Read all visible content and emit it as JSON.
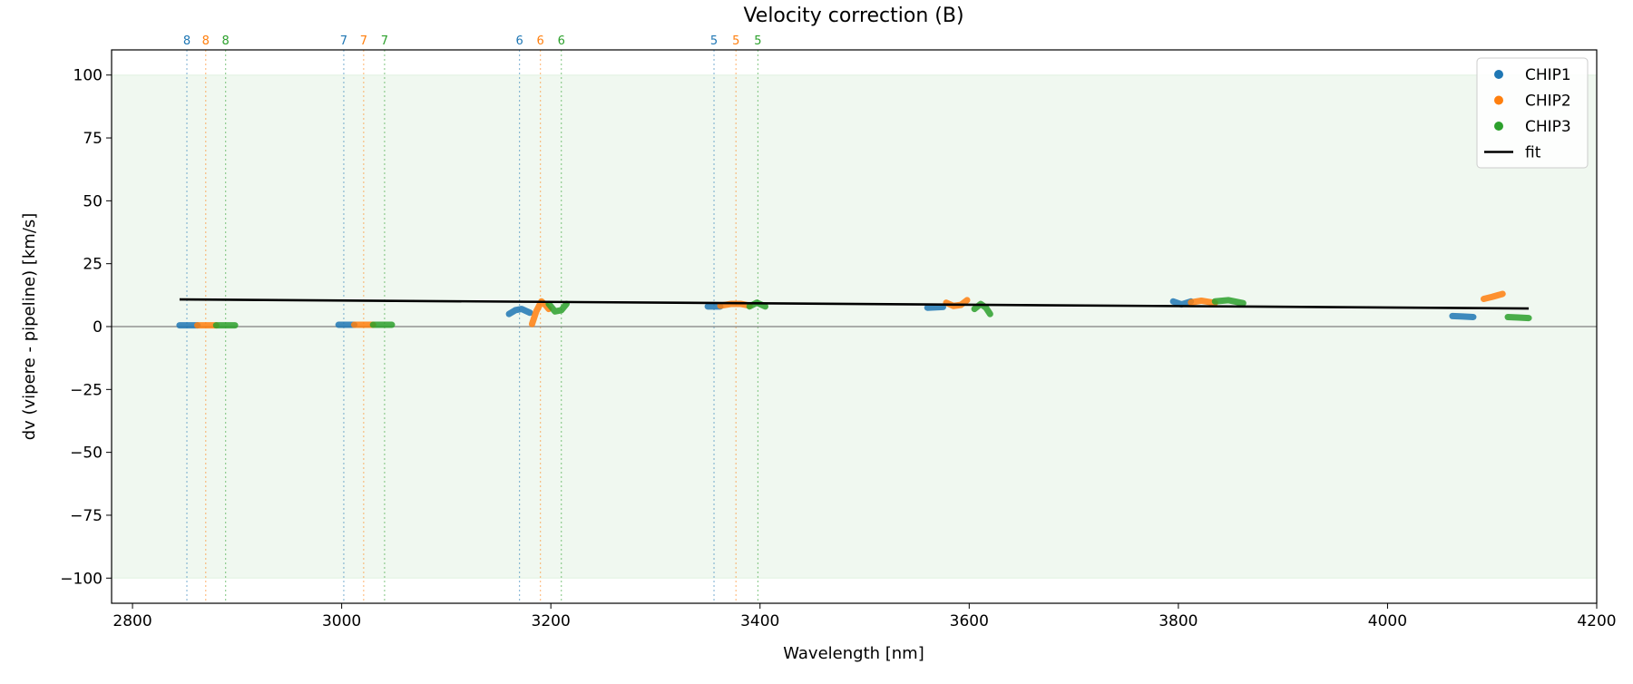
{
  "chart_data": {
    "type": "scatter",
    "title": "Velocity correction (B)",
    "xlabel": "Wavelength [nm]",
    "ylabel": "dv (vipere - pipeline) [km/s]",
    "xlim": [
      2780,
      4200
    ],
    "ylim": [
      -110,
      110
    ],
    "xticks": [
      2800,
      3000,
      3200,
      3400,
      3600,
      3800,
      4000,
      4200
    ],
    "yticks": [
      -100,
      -75,
      -50,
      -25,
      0,
      25,
      50,
      75,
      100
    ],
    "shaded_band": [
      -100,
      100
    ],
    "colors": {
      "CHIP1": "#1f77b4",
      "CHIP2": "#ff7f0e",
      "CHIP3": "#2ca02c",
      "fit": "#000000",
      "band": "#2ca02c"
    },
    "legend": {
      "placement": "top-right",
      "entries": [
        "CHIP1",
        "CHIP2",
        "CHIP3",
        "fit"
      ]
    },
    "order_markers": [
      {
        "order": "8",
        "chip": "CHIP1",
        "x": 2852
      },
      {
        "order": "8",
        "chip": "CHIP2",
        "x": 2870
      },
      {
        "order": "8",
        "chip": "CHIP3",
        "x": 2889
      },
      {
        "order": "7",
        "chip": "CHIP1",
        "x": 3002
      },
      {
        "order": "7",
        "chip": "CHIP2",
        "x": 3021
      },
      {
        "order": "7",
        "chip": "CHIP3",
        "x": 3041
      },
      {
        "order": "6",
        "chip": "CHIP1",
        "x": 3170
      },
      {
        "order": "6",
        "chip": "CHIP2",
        "x": 3190
      },
      {
        "order": "6",
        "chip": "CHIP3",
        "x": 3210
      },
      {
        "order": "5",
        "chip": "CHIP1",
        "x": 3356
      },
      {
        "order": "5",
        "chip": "CHIP2",
        "x": 3377
      },
      {
        "order": "5",
        "chip": "CHIP3",
        "x": 3398
      }
    ],
    "series": [
      {
        "name": "CHIP1",
        "segments": [
          [
            [
              2845,
              0.5
            ],
            [
              2862,
              0.5
            ]
          ],
          [
            [
              2997,
              0.7
            ],
            [
              3012,
              0.7
            ]
          ],
          [
            [
              3160,
              5
            ],
            [
              3166,
              6.5
            ],
            [
              3172,
              7
            ],
            [
              3180,
              5.5
            ]
          ],
          [
            [
              3350,
              8
            ],
            [
              3362,
              8
            ]
          ],
          [
            [
              3560,
              7.5
            ],
            [
              3575,
              7.8
            ]
          ],
          [
            [
              3795,
              10
            ],
            [
              3803,
              8.8
            ],
            [
              3812,
              10
            ]
          ],
          [
            [
              4062,
              4.2
            ],
            [
              4072,
              4
            ],
            [
              4082,
              3.8
            ]
          ]
        ]
      },
      {
        "name": "CHIP2",
        "segments": [
          [
            [
              2862,
              0.5
            ],
            [
              2880,
              0.5
            ]
          ],
          [
            [
              3012,
              0.7
            ],
            [
              3030,
              0.7
            ]
          ],
          [
            [
              3182,
              1
            ],
            [
              3186,
              6
            ],
            [
              3191,
              10
            ],
            [
              3195,
              8.5
            ],
            [
              3198,
              7
            ]
          ],
          [
            [
              3362,
              8.3
            ],
            [
              3372,
              9
            ],
            [
              3382,
              9
            ],
            [
              3390,
              8.3
            ]
          ],
          [
            [
              3578,
              9.5
            ],
            [
              3585,
              8.2
            ],
            [
              3592,
              8.6
            ],
            [
              3598,
              10.5
            ]
          ],
          [
            [
              3812,
              9.6
            ],
            [
              3822,
              10.3
            ],
            [
              3835,
              9.4
            ]
          ],
          [
            [
              4092,
              11
            ],
            [
              4100,
              11.8
            ],
            [
              4110,
              13
            ]
          ]
        ]
      },
      {
        "name": "CHIP3",
        "segments": [
          [
            [
              2880,
              0.5
            ],
            [
              2898,
              0.5
            ]
          ],
          [
            [
              3030,
              0.7
            ],
            [
              3048,
              0.7
            ]
          ],
          [
            [
              3198,
              9
            ],
            [
              3204,
              6
            ],
            [
              3210,
              6.5
            ],
            [
              3215,
              9
            ]
          ],
          [
            [
              3390,
              8
            ],
            [
              3397,
              9.5
            ],
            [
              3405,
              8
            ]
          ],
          [
            [
              3605,
              7
            ],
            [
              3611,
              9
            ],
            [
              3616,
              7.5
            ],
            [
              3620,
              5
            ]
          ],
          [
            [
              3835,
              10
            ],
            [
              3848,
              10.5
            ],
            [
              3862,
              9.3
            ]
          ],
          [
            [
              4115,
              3.8
            ],
            [
              4125,
              3.6
            ],
            [
              4135,
              3.4
            ]
          ]
        ]
      }
    ],
    "fit": {
      "x": [
        2845,
        4135
      ],
      "y": [
        10.8,
        7.2
      ]
    }
  }
}
